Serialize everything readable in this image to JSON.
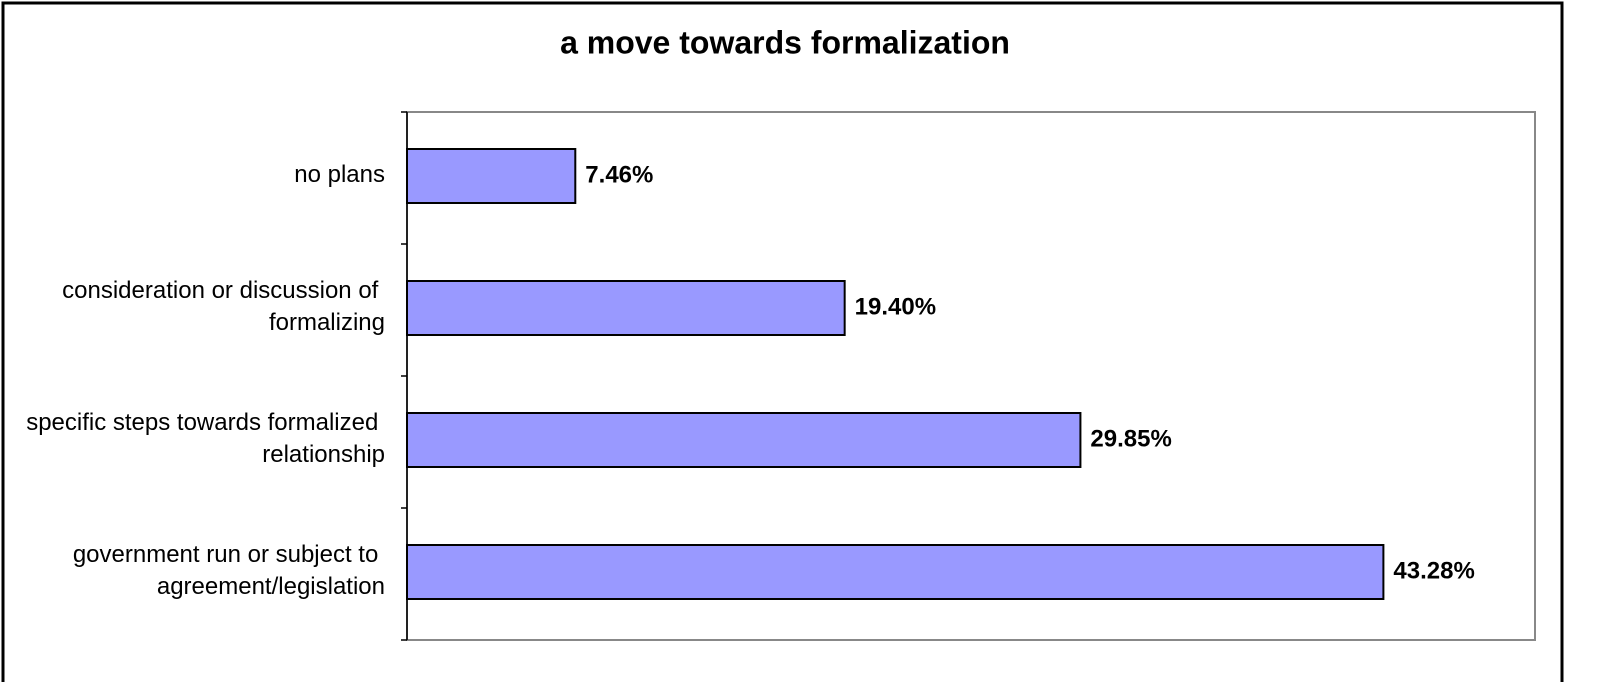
{
  "chart_data": {
    "type": "bar",
    "orientation": "horizontal",
    "title": "a move towards formalization",
    "categories": [
      "no plans",
      "consideration or discussion of formalizing",
      "specific steps towards formalized relationship",
      "government run or subject to agreement/legislation"
    ],
    "values": [
      7.46,
      19.4,
      29.85,
      43.28
    ],
    "value_labels": [
      "7.46%",
      "19.40%",
      "29.85%",
      "43.28%"
    ],
    "color": "#9999ff",
    "xlim": [
      0,
      50
    ]
  }
}
